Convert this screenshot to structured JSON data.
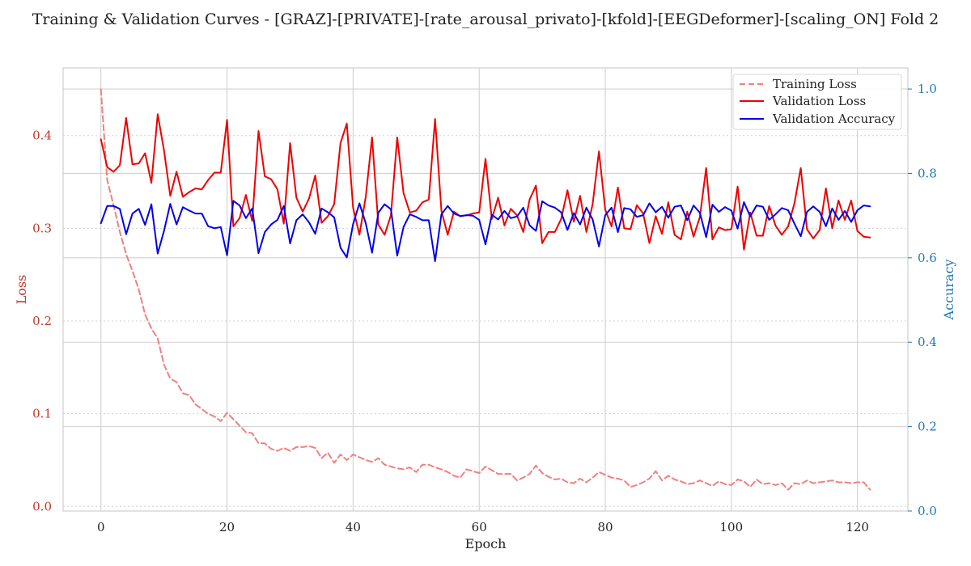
{
  "chart_data": {
    "type": "line",
    "title": "Training & Validation Curves - [GRAZ]-[PRIVATE]-[rate_arousal_privato]-[kfold]-[EEGDeformer]-[scaling_ON] Fold 2",
    "xlabel": "Epoch",
    "ylabel_left": "Loss",
    "ylabel_right": "Accuracy",
    "xlim": [
      -6,
      128
    ],
    "ylim_left": [
      -0.005,
      0.473
    ],
    "ylim_right": [
      0.0,
      1.05
    ],
    "xticks": [
      0,
      20,
      40,
      60,
      80,
      100,
      120
    ],
    "yticks_left": [
      0.0,
      0.1,
      0.2,
      0.3,
      0.4
    ],
    "yticks_right": [
      0.0,
      0.2,
      0.4,
      0.6,
      0.8,
      1.0
    ],
    "grid": true,
    "legend_position": "top-right",
    "colors": {
      "left_axis": "#c0392b",
      "right_axis": "#1f77b4",
      "grid": "#d0d0d0",
      "frame": "#cfcfcf"
    },
    "series": [
      {
        "name": "Training Loss",
        "axis": "left",
        "style": "dashed",
        "color": "#f08080",
        "values": [
          0.45,
          0.352,
          0.325,
          0.296,
          0.272,
          0.254,
          0.234,
          0.207,
          0.192,
          0.181,
          0.153,
          0.138,
          0.134,
          0.122,
          0.12,
          0.11,
          0.105,
          0.1,
          0.097,
          0.092,
          0.101,
          0.094,
          0.087,
          0.08,
          0.079,
          0.068,
          0.068,
          0.062,
          0.06,
          0.063,
          0.06,
          0.064,
          0.064,
          0.065,
          0.063,
          0.052,
          0.058,
          0.047,
          0.056,
          0.05,
          0.056,
          0.053,
          0.05,
          0.048,
          0.052,
          0.045,
          0.043,
          0.041,
          0.04,
          0.042,
          0.037,
          0.045,
          0.045,
          0.042,
          0.04,
          0.037,
          0.033,
          0.031,
          0.04,
          0.038,
          0.036,
          0.043,
          0.039,
          0.035,
          0.035,
          0.035,
          0.028,
          0.031,
          0.035,
          0.044,
          0.036,
          0.032,
          0.029,
          0.03,
          0.026,
          0.025,
          0.03,
          0.026,
          0.031,
          0.037,
          0.034,
          0.031,
          0.03,
          0.028,
          0.021,
          0.023,
          0.026,
          0.03,
          0.038,
          0.028,
          0.033,
          0.029,
          0.027,
          0.024,
          0.025,
          0.028,
          0.025,
          0.022,
          0.027,
          0.024,
          0.023,
          0.029,
          0.027,
          0.021,
          0.029,
          0.024,
          0.025,
          0.023,
          0.025,
          0.018,
          0.025,
          0.024,
          0.028,
          0.025,
          0.026,
          0.027,
          0.028,
          0.026,
          0.026,
          0.025,
          0.026,
          0.026,
          0.018
        ]
      },
      {
        "name": "Validation Loss",
        "axis": "left",
        "style": "solid",
        "color": "#ee0000",
        "values": [
          0.396,
          0.366,
          0.361,
          0.368,
          0.419,
          0.369,
          0.37,
          0.381,
          0.349,
          0.423,
          0.384,
          0.335,
          0.361,
          0.334,
          0.339,
          0.343,
          0.342,
          0.352,
          0.36,
          0.36,
          0.417,
          0.302,
          0.311,
          0.336,
          0.308,
          0.405,
          0.356,
          0.353,
          0.342,
          0.305,
          0.392,
          0.333,
          0.318,
          0.332,
          0.357,
          0.306,
          0.313,
          0.326,
          0.392,
          0.413,
          0.322,
          0.293,
          0.334,
          0.398,
          0.304,
          0.293,
          0.314,
          0.398,
          0.338,
          0.317,
          0.319,
          0.328,
          0.331,
          0.418,
          0.319,
          0.293,
          0.318,
          0.313,
          0.314,
          0.316,
          0.317,
          0.375,
          0.31,
          0.333,
          0.303,
          0.321,
          0.314,
          0.296,
          0.331,
          0.346,
          0.284,
          0.296,
          0.296,
          0.31,
          0.341,
          0.307,
          0.335,
          0.296,
          0.326,
          0.383,
          0.32,
          0.302,
          0.344,
          0.3,
          0.299,
          0.325,
          0.316,
          0.284,
          0.313,
          0.294,
          0.328,
          0.293,
          0.288,
          0.318,
          0.291,
          0.312,
          0.365,
          0.288,
          0.301,
          0.298,
          0.299,
          0.345,
          0.277,
          0.317,
          0.292,
          0.292,
          0.324,
          0.303,
          0.293,
          0.302,
          0.327,
          0.365,
          0.299,
          0.289,
          0.298,
          0.343,
          0.3,
          0.33,
          0.309,
          0.33,
          0.297,
          0.291,
          0.29
        ]
      },
      {
        "name": "Validation Accuracy",
        "axis": "right",
        "style": "solid",
        "color": "#0000ee",
        "values": [
          0.682,
          0.723,
          0.723,
          0.716,
          0.656,
          0.705,
          0.716,
          0.678,
          0.727,
          0.61,
          0.664,
          0.728,
          0.679,
          0.72,
          0.712,
          0.705,
          0.705,
          0.675,
          0.67,
          0.673,
          0.606,
          0.735,
          0.724,
          0.694,
          0.717,
          0.611,
          0.661,
          0.679,
          0.69,
          0.723,
          0.634,
          0.689,
          0.703,
          0.684,
          0.657,
          0.717,
          0.708,
          0.696,
          0.624,
          0.601,
          0.68,
          0.729,
          0.682,
          0.612,
          0.707,
          0.727,
          0.715,
          0.605,
          0.673,
          0.703,
          0.697,
          0.689,
          0.689,
          0.592,
          0.703,
          0.723,
          0.705,
          0.699,
          0.701,
          0.7,
          0.69,
          0.632,
          0.702,
          0.691,
          0.711,
          0.694,
          0.698,
          0.719,
          0.677,
          0.664,
          0.734,
          0.724,
          0.719,
          0.708,
          0.666,
          0.706,
          0.679,
          0.719,
          0.691,
          0.627,
          0.701,
          0.719,
          0.661,
          0.718,
          0.715,
          0.697,
          0.701,
          0.729,
          0.708,
          0.721,
          0.695,
          0.721,
          0.724,
          0.689,
          0.724,
          0.707,
          0.649,
          0.726,
          0.709,
          0.72,
          0.712,
          0.669,
          0.732,
          0.698,
          0.724,
          0.721,
          0.69,
          0.703,
          0.718,
          0.713,
          0.681,
          0.651,
          0.709,
          0.722,
          0.709,
          0.675,
          0.717,
          0.69,
          0.711,
          0.685,
          0.713,
          0.724,
          0.722
        ]
      }
    ]
  }
}
